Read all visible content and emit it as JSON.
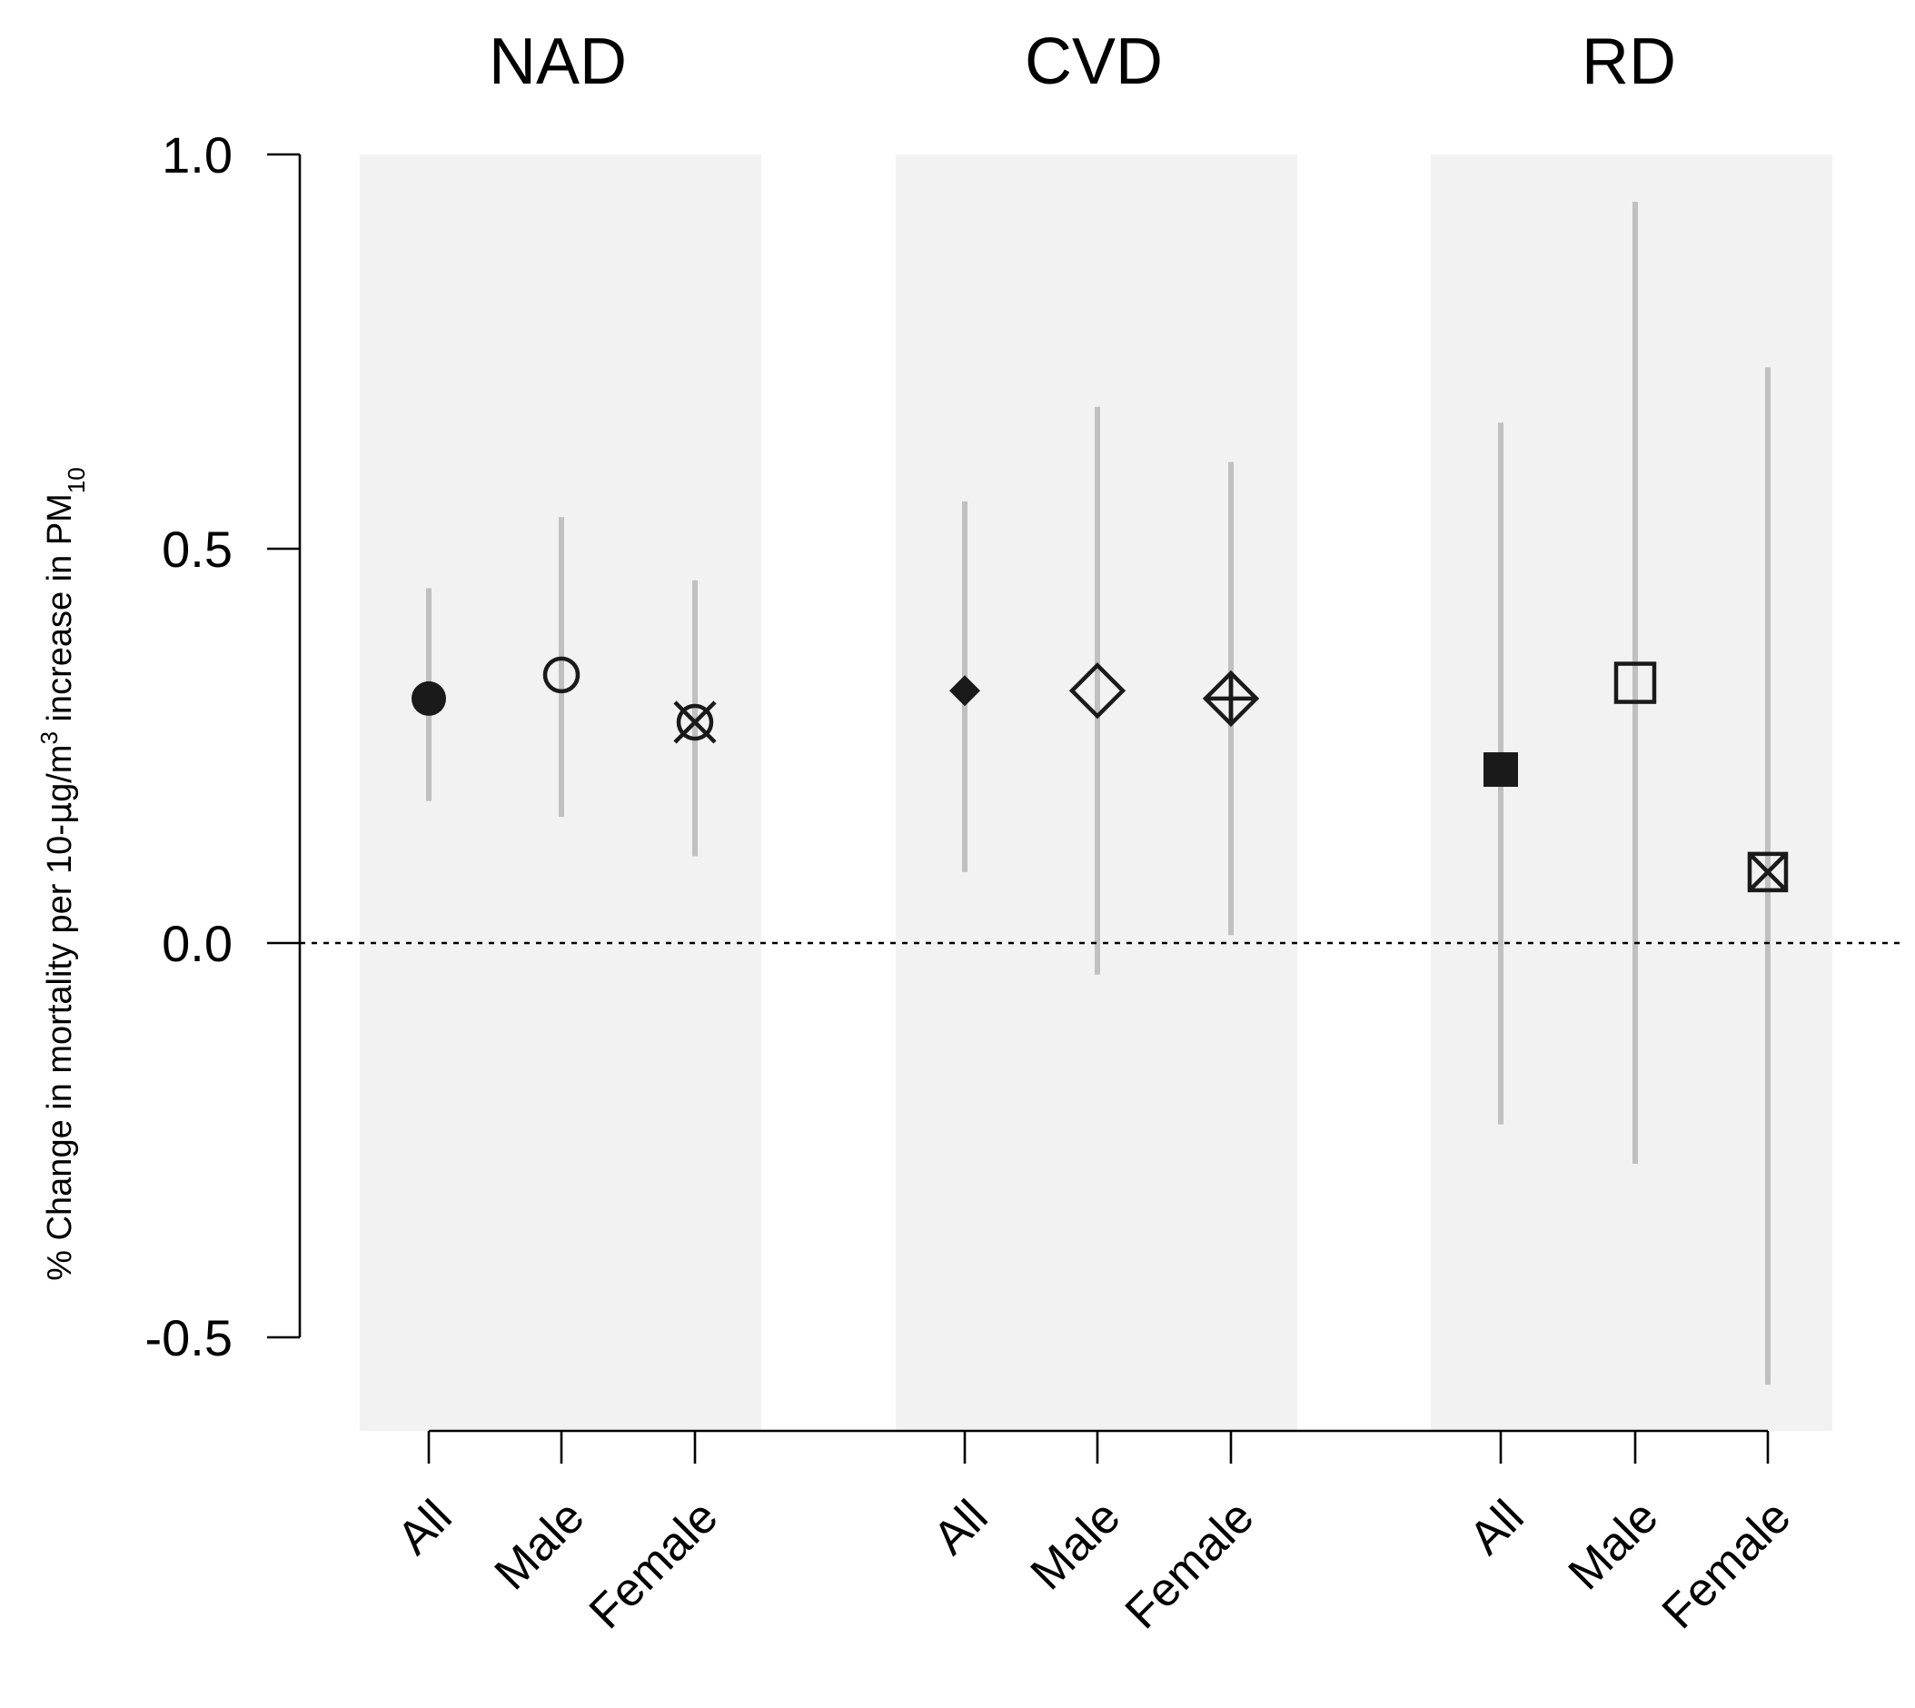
{
  "chart_data": {
    "type": "scatter",
    "ylabel_parts": {
      "main": "% Change in mortality per 10-",
      "mu": "μ",
      "g": "g/",
      "m": "m",
      "sup": "3",
      "rest": " increase in  PM",
      "sub": "10"
    },
    "ylim": [
      -0.6,
      1.0
    ],
    "yticks": [
      "1.0",
      "0.5",
      "0.0",
      "-0.5"
    ],
    "ytick_values": [
      1.0,
      0.5,
      0.0,
      -0.5
    ],
    "reference_line": 0.0,
    "grid": false,
    "groups": [
      {
        "title": "NAD",
        "points": [
          {
            "label": "All",
            "estimate": 0.31,
            "lower": 0.18,
            "upper": 0.45,
            "marker": "filled-circle"
          },
          {
            "label": "Male",
            "estimate": 0.34,
            "lower": 0.16,
            "upper": 0.54,
            "marker": "open-circle"
          },
          {
            "label": "Female",
            "estimate": 0.28,
            "lower": 0.11,
            "upper": 0.46,
            "marker": "crossed-circle"
          }
        ]
      },
      {
        "title": "CVD",
        "points": [
          {
            "label": "All",
            "estimate": 0.32,
            "lower": 0.09,
            "upper": 0.56,
            "marker": "filled-diamond"
          },
          {
            "label": "Male",
            "estimate": 0.32,
            "lower": -0.04,
            "upper": 0.68,
            "marker": "open-diamond"
          },
          {
            "label": "Female",
            "estimate": 0.31,
            "lower": 0.01,
            "upper": 0.61,
            "marker": "plus-diamond"
          }
        ]
      },
      {
        "title": "RD",
        "points": [
          {
            "label": "All",
            "estimate": 0.22,
            "lower": -0.23,
            "upper": 0.66,
            "marker": "filled-square"
          },
          {
            "label": "Male",
            "estimate": 0.33,
            "lower": -0.28,
            "upper": 0.94,
            "marker": "open-square"
          },
          {
            "label": "Female",
            "estimate": 0.09,
            "lower": -0.56,
            "upper": 0.73,
            "marker": "crossed-square"
          }
        ]
      }
    ],
    "colors": {
      "ci": "#c0c0c0",
      "panel": "#f2f2f2",
      "marker": "#1a1a1a"
    }
  }
}
